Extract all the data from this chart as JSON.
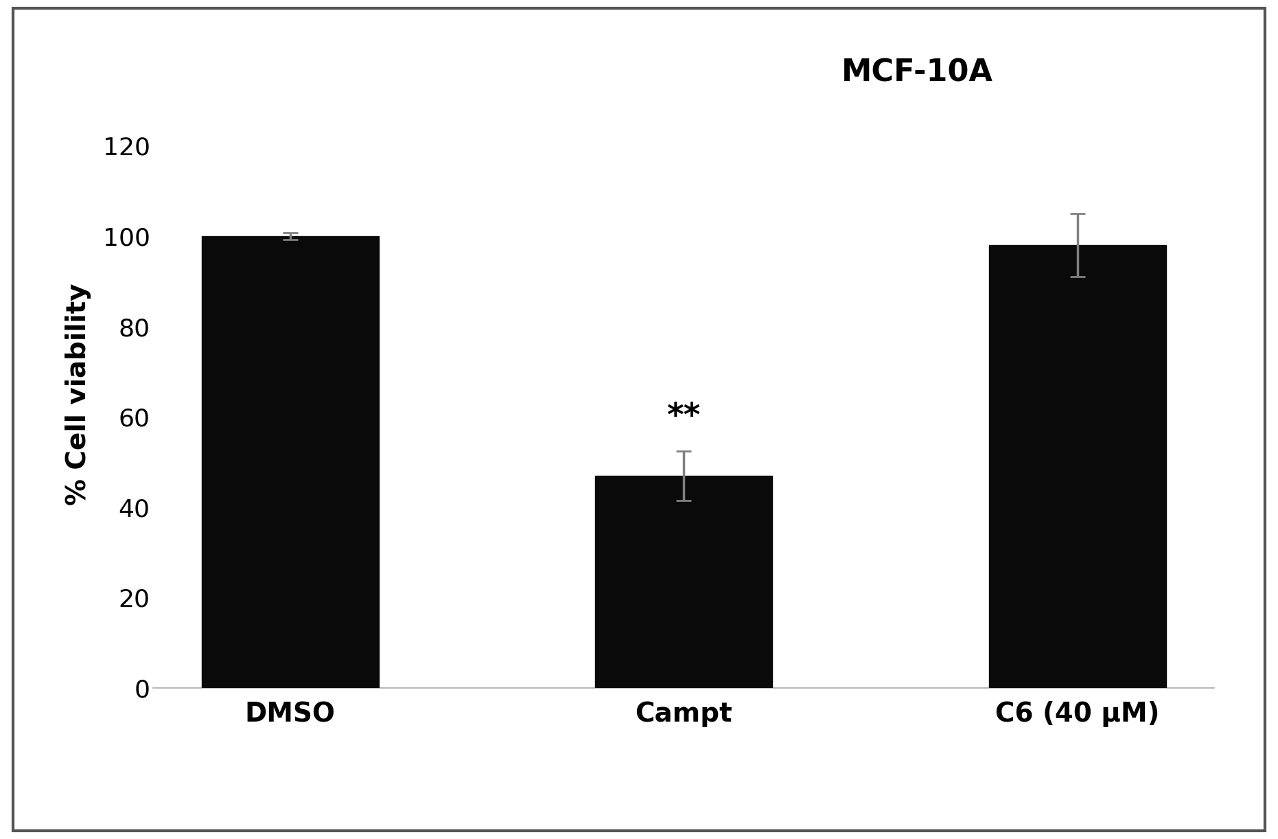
{
  "title": "MCF-10A",
  "ylabel": "% Cell viability",
  "categories": [
    "DMSO",
    "Campt",
    "C6 (40 μM)"
  ],
  "values": [
    100,
    47,
    98
  ],
  "errors": [
    0.8,
    5.5,
    7.0
  ],
  "bar_color": "#0a0a0a",
  "error_color": "#808080",
  "ylim": [
    0,
    130
  ],
  "yticks": [
    0,
    20,
    40,
    60,
    80,
    100,
    120
  ],
  "title_fontsize": 32,
  "label_fontsize": 28,
  "tick_fontsize": 26,
  "xticklabel_fontsize": 28,
  "annotation": "**",
  "annotation_bar_index": 1,
  "background_color": "#ffffff",
  "bar_width": 0.45,
  "figure_border_color": "#555555",
  "border_linewidth": 3
}
